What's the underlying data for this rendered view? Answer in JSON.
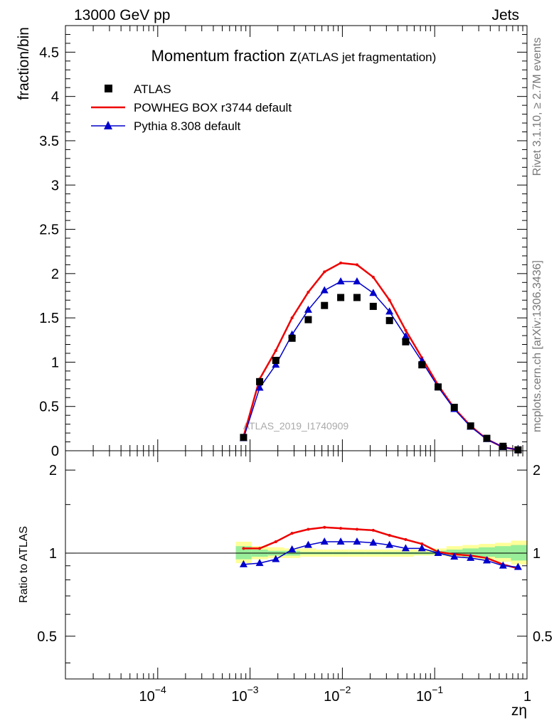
{
  "header": {
    "left": "13000 GeV pp",
    "right": "Jets"
  },
  "side_labels": {
    "rivet": "Rivet 3.1.10, ≥ 2.7M events",
    "mcplots": "mcplots.cern.ch [arXiv:1306.3436]"
  },
  "watermark": "ATLAS_2019_I1740909",
  "chart_data": [
    {
      "type": "scatter",
      "title": "Momentum fraction z",
      "title_suffix": "(ATLAS jet fragmentation)",
      "ylabel": "fraction/bin",
      "x_scale": "log",
      "xlim": [
        1e-05,
        1
      ],
      "ylim": [
        0,
        4.8
      ],
      "yticks": [
        0,
        0.5,
        1,
        1.5,
        2,
        2.5,
        3,
        3.5,
        4,
        4.5
      ],
      "ytick_labels": [
        "0",
        "0.5",
        "1",
        "1.5",
        "2",
        "2.5",
        "3",
        "3.5",
        "4",
        "4.5"
      ],
      "legend_position": "top-left",
      "x": [
        0.00085,
        0.00127,
        0.0019,
        0.00285,
        0.00427,
        0.0064,
        0.0096,
        0.0144,
        0.0216,
        0.0324,
        0.0485,
        0.0727,
        0.109,
        0.163,
        0.245,
        0.367,
        0.55,
        0.8
      ],
      "series": [
        {
          "name": "ATLAS",
          "color": "#000000",
          "marker": "square",
          "values": [
            0.15,
            0.78,
            1.02,
            1.27,
            1.48,
            1.64,
            1.73,
            1.73,
            1.63,
            1.47,
            1.23,
            0.97,
            0.72,
            0.49,
            0.28,
            0.14,
            0.05,
            0.01
          ]
        },
        {
          "name": "POWHEG BOX r3744 default",
          "color": "#ee0000",
          "marker": "line",
          "values": [
            0.16,
            0.81,
            1.13,
            1.5,
            1.79,
            2.02,
            2.12,
            2.1,
            1.96,
            1.7,
            1.36,
            1.05,
            0.74,
            0.48,
            0.28,
            0.13,
            0.04,
            0.01
          ]
        },
        {
          "name": "Pythia 8.308 default",
          "color": "#0000cc",
          "marker": "triangle",
          "values": [
            0.14,
            0.71,
            0.97,
            1.31,
            1.59,
            1.81,
            1.91,
            1.91,
            1.78,
            1.57,
            1.29,
            1.01,
            0.72,
            0.47,
            0.27,
            0.13,
            0.04,
            0.01
          ]
        }
      ]
    },
    {
      "type": "line",
      "ylabel": "Ratio to ATLAS",
      "xlabel": "zη",
      "x_scale": "log",
      "y_scale": "log",
      "xlim": [
        1e-05,
        1
      ],
      "ylim": [
        0.35,
        2.35
      ],
      "xticks": [
        0.0001,
        0.001,
        0.01,
        0.1,
        1
      ],
      "xtick_labels": [
        {
          "base": "10",
          "exp": "−4"
        },
        {
          "base": "10",
          "exp": "−3"
        },
        {
          "base": "10",
          "exp": "−2"
        },
        {
          "base": "10",
          "exp": "−1"
        },
        {
          "base": "1",
          "exp": ""
        }
      ],
      "yticks": [
        0.5,
        1,
        2
      ],
      "ytick_labels": [
        "0.5",
        "1",
        "2"
      ],
      "x": [
        0.00085,
        0.00127,
        0.0019,
        0.00285,
        0.00427,
        0.0064,
        0.0096,
        0.0144,
        0.0216,
        0.0324,
        0.0485,
        0.0727,
        0.109,
        0.163,
        0.245,
        0.367,
        0.55,
        0.8
      ],
      "bands": {
        "x_edges": [
          0.0007,
          0.00104,
          0.00156,
          0.00234,
          0.0035,
          0.0052,
          0.0078,
          0.0117,
          0.0176,
          0.0264,
          0.0396,
          0.0594,
          0.089,
          0.134,
          0.2,
          0.3,
          0.45,
          0.67,
          1.0
        ],
        "stat_syst_hi": [
          1.1,
          1.06,
          1.05,
          1.04,
          1.04,
          1.03,
          1.03,
          1.03,
          1.03,
          1.03,
          1.03,
          1.03,
          1.04,
          1.06,
          1.07,
          1.08,
          1.09,
          1.11
        ],
        "stat_syst_lo": [
          0.92,
          0.95,
          0.96,
          0.96,
          0.97,
          0.97,
          0.97,
          0.97,
          0.97,
          0.97,
          0.97,
          0.98,
          0.98,
          0.97,
          0.96,
          0.95,
          0.93,
          0.91
        ],
        "stat_hi": [
          1.06,
          1.03,
          1.02,
          1.02,
          1.01,
          1.01,
          1.01,
          1.01,
          1.01,
          1.01,
          1.01,
          1.01,
          1.02,
          1.03,
          1.04,
          1.05,
          1.06,
          1.07
        ],
        "stat_lo": [
          0.95,
          0.97,
          0.98,
          0.98,
          0.99,
          0.99,
          0.99,
          0.99,
          0.99,
          0.99,
          0.99,
          0.99,
          0.99,
          0.98,
          0.97,
          0.97,
          0.96,
          0.94
        ],
        "outer_color": "#ffff99",
        "inner_color": "#99ee99"
      },
      "series": [
        {
          "name": "POWHEG BOX r3744 default",
          "color": "#ee0000",
          "values": [
            1.04,
            1.04,
            1.1,
            1.18,
            1.22,
            1.24,
            1.23,
            1.22,
            1.21,
            1.16,
            1.12,
            1.08,
            1.01,
            0.99,
            0.98,
            0.96,
            0.91,
            0.88
          ]
        },
        {
          "name": "Pythia 8.308 default",
          "color": "#0000cc",
          "values": [
            0.91,
            0.92,
            0.95,
            1.03,
            1.07,
            1.1,
            1.1,
            1.1,
            1.09,
            1.07,
            1.04,
            1.04,
            1.0,
            0.97,
            0.96,
            0.94,
            0.9,
            0.89
          ]
        }
      ]
    }
  ]
}
